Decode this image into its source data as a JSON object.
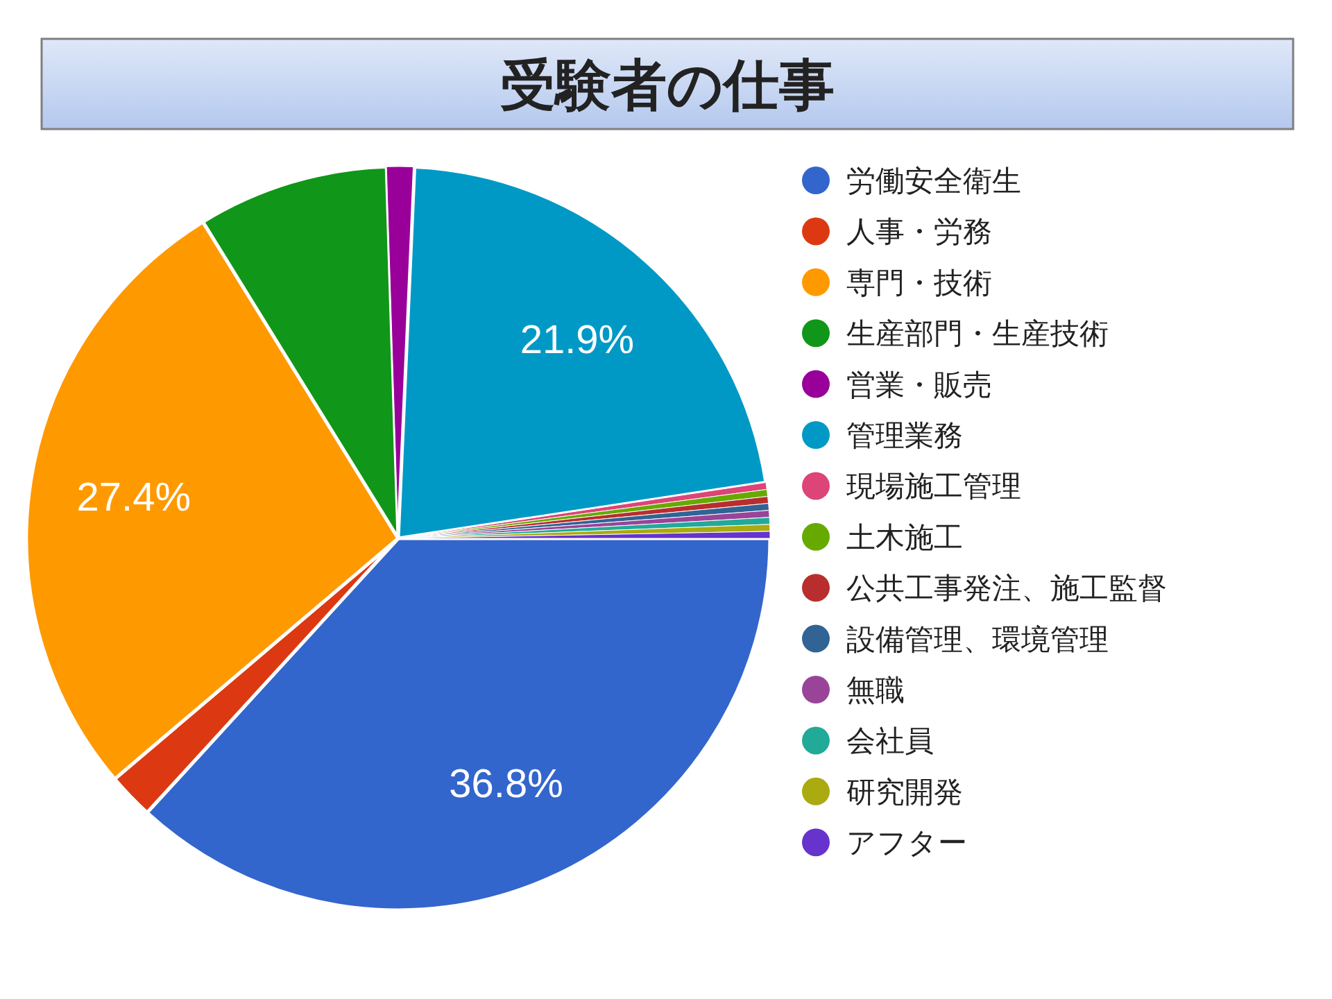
{
  "chart_data": {
    "type": "pie",
    "title": "受験者の仕事",
    "legend": "right",
    "categories": [
      "労働安全衛生",
      "人事・労務",
      "専門・技術",
      "生産部門・生産技術",
      "営業・販売",
      "管理業務",
      "現場施工管理",
      "土木施工",
      "公共工事発注、施工監督",
      "設備管理、環境管理",
      "無職",
      "会社員",
      "研究開発",
      "アフター"
    ],
    "values": [
      36.8,
      2.0,
      27.4,
      8.3,
      1.2,
      21.9,
      0.3,
      0.3,
      0.3,
      0.3,
      0.3,
      0.3,
      0.3,
      0.3
    ],
    "value_labels": [
      "36.8%",
      null,
      "27.4%",
      null,
      null,
      "21.9%",
      null,
      null,
      null,
      null,
      null,
      null,
      null,
      null
    ],
    "colors": [
      "#3366cc",
      "#dc3912",
      "#ff9900",
      "#109618",
      "#990099",
      "#0099c6",
      "#dd4477",
      "#66aa00",
      "#b82e2e",
      "#316395",
      "#994499",
      "#22aa99",
      "#aaaa11",
      "#6633cc"
    ]
  }
}
